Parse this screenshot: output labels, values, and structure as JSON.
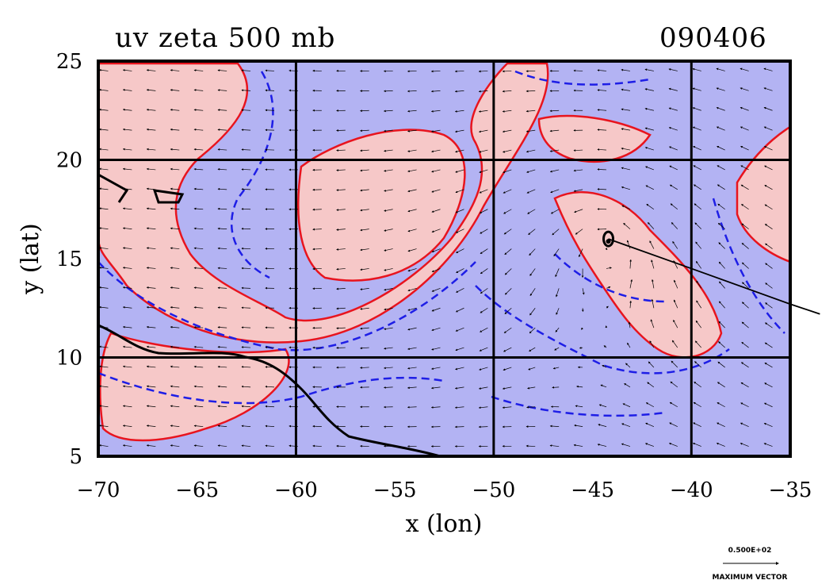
{
  "chart_data": {
    "type": "contour",
    "title": "uv zeta 500 mb",
    "subtitle": "090406",
    "xlabel": "x (lon)",
    "ylabel": "y (lat)",
    "xlim": [
      -70,
      -35
    ],
    "ylim": [
      5,
      25
    ],
    "xticks": [
      "−70",
      "−65",
      "−60",
      "−55",
      "−50",
      "−45",
      "−40",
      "−35"
    ],
    "yticks": [
      "5",
      "10",
      "15",
      "20",
      "25"
    ],
    "grid_lon": [
      -60,
      -50,
      -40
    ],
    "grid_lat": [
      10,
      20
    ],
    "colors": {
      "positive_fill": "#f6c8c8",
      "negative_fill": "#b3b3f3",
      "positive_contour": "#e8141e",
      "negative_contour": "#1e1ee6",
      "coast": "#000000"
    },
    "storm_center": {
      "lon": -44.2,
      "lat": 16.0
    },
    "track": [
      [
        -44.2,
        16.0
      ],
      [
        -40.0,
        14.5
      ],
      [
        -35.0,
        12.7
      ],
      [
        -33.5,
        12.2
      ]
    ],
    "vector_key": {
      "value_label": "0.500E+02",
      "caption": "MAXIMUM VECTOR"
    }
  }
}
